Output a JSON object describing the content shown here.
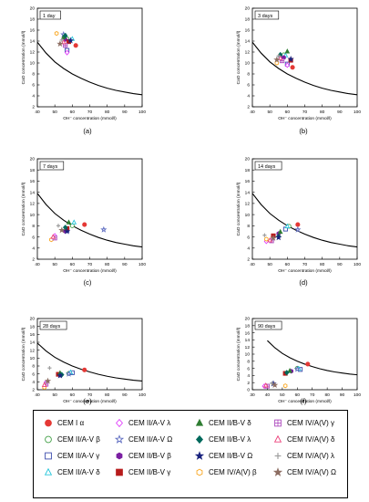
{
  "figure": {
    "panel_labels": [
      "(a)",
      "(b)",
      "(c)",
      "(d)",
      "(e)",
      "(f)"
    ]
  },
  "legend": {
    "entries": [
      {
        "label": "CEM I α",
        "marker": "circle",
        "color": "#e53935",
        "filled": true
      },
      {
        "label": "CEM II/A-V β",
        "marker": "circle",
        "color": "#43a047",
        "filled": false
      },
      {
        "label": "CEM II/A-V γ",
        "marker": "square",
        "color": "#3949ab",
        "filled": false
      },
      {
        "label": "CEM II/A-V δ",
        "marker": "triangle",
        "color": "#26c6da",
        "filled": false
      },
      {
        "label": "CEM II/A-V λ",
        "marker": "diamond",
        "color": "#e040fb",
        "filled": false
      },
      {
        "label": "CEM II/A-V Ω",
        "marker": "star",
        "color": "#5c6bc0",
        "filled": false
      },
      {
        "label": "CEM II/B-V β",
        "marker": "hexagon",
        "color": "#7b1fa2",
        "filled": true
      },
      {
        "label": "CEM II/B-V γ",
        "marker": "square",
        "color": "#b71c1c",
        "filled": true
      },
      {
        "label": "CEM II/B-V δ",
        "marker": "triangle",
        "color": "#2e7d32",
        "filled": true
      },
      {
        "label": "CEM II/B-V λ",
        "marker": "diamond",
        "color": "#00695c",
        "filled": true
      },
      {
        "label": "CEM II/B-V Ω",
        "marker": "star",
        "color": "#1a237e",
        "filled": true
      },
      {
        "label": "CEM IV/A(V) β",
        "marker": "hexagon",
        "color": "#f9a825",
        "filled": false
      },
      {
        "label": "CEM IV/A(V) γ",
        "marker": "squarecross",
        "color": "#ab47bc",
        "filled": false
      },
      {
        "label": "CEM IV/A(V) δ",
        "marker": "triangle",
        "color": "#ec407a",
        "filled": false
      },
      {
        "label": "CEM IV/A(V) λ",
        "marker": "plus",
        "color": "#9e9e9e",
        "filled": true
      },
      {
        "label": "CEM IV/A(V) Ω",
        "marker": "star",
        "color": "#8d6e63",
        "filled": true
      }
    ]
  },
  "chart_data": [
    {
      "type": "scatter",
      "panel": "(a)",
      "title": "1 day",
      "xlabel": "OH⁻ concentration (mmol/l)",
      "ylabel": "CaO concentration (mmol/l)",
      "xlim": [
        40,
        100
      ],
      "ylim": [
        2,
        20
      ],
      "xticks": [
        40,
        50,
        60,
        70,
        80,
        90,
        100
      ],
      "yticks": [
        2,
        4,
        6,
        8,
        10,
        12,
        14,
        16,
        18,
        20
      ],
      "curve": {
        "x": [
          40,
          45,
          50,
          55,
          60,
          65,
          70,
          75,
          80,
          85,
          90,
          95,
          100
        ],
        "y": [
          13.8,
          11.8,
          10.2,
          9.0,
          8.0,
          7.2,
          6.5,
          5.9,
          5.4,
          5.0,
          4.7,
          4.4,
          4.2
        ]
      },
      "points": [
        {
          "s": 0,
          "x": 62,
          "y": 13.2
        },
        {
          "s": 1,
          "x": 57,
          "y": 14.4
        },
        {
          "s": 2,
          "x": 57,
          "y": 12.3
        },
        {
          "s": 3,
          "x": 60,
          "y": 14.4
        },
        {
          "s": 4,
          "x": 57,
          "y": 11.9
        },
        {
          "s": 5,
          "x": 55,
          "y": 15.2
        },
        {
          "s": 6,
          "x": 56,
          "y": 14.3
        },
        {
          "s": 7,
          "x": 58,
          "y": 13.9
        },
        {
          "s": 8,
          "x": 55,
          "y": 14.7
        },
        {
          "s": 9,
          "x": 56,
          "y": 15.0
        },
        {
          "s": 10,
          "x": 59,
          "y": 14.1
        },
        {
          "s": 11,
          "x": 51,
          "y": 15.4
        },
        {
          "s": 12,
          "x": 56,
          "y": 13.2
        },
        {
          "s": 13,
          "x": 55,
          "y": 13.8
        },
        {
          "s": 14,
          "x": 54,
          "y": 14.2
        },
        {
          "s": 15,
          "x": 53,
          "y": 13.5
        }
      ]
    },
    {
      "type": "scatter",
      "panel": "(b)",
      "title": "3 days",
      "xlabel": "OH⁻ concentration (mmol/l)",
      "ylabel": "CaO concentration (mmol/l)",
      "xlim": [
        40,
        100
      ],
      "ylim": [
        2,
        20
      ],
      "xticks": [
        40,
        50,
        60,
        70,
        80,
        90,
        100
      ],
      "yticks": [
        2,
        4,
        6,
        8,
        10,
        12,
        14,
        16,
        18,
        20
      ],
      "curve": {
        "x": [
          40,
          45,
          50,
          55,
          60,
          65,
          70,
          75,
          80,
          85,
          90,
          95,
          100
        ],
        "y": [
          13.8,
          11.8,
          10.2,
          9.0,
          8.0,
          7.2,
          6.5,
          5.9,
          5.4,
          5.0,
          4.7,
          4.4,
          4.2
        ]
      },
      "points": [
        {
          "s": 0,
          "x": 63,
          "y": 9.2
        },
        {
          "s": 1,
          "x": 58,
          "y": 11.5
        },
        {
          "s": 2,
          "x": 60,
          "y": 9.8
        },
        {
          "s": 3,
          "x": 59,
          "y": 11.4
        },
        {
          "s": 4,
          "x": 60,
          "y": 9.6
        },
        {
          "s": 5,
          "x": 56,
          "y": 11.0
        },
        {
          "s": 6,
          "x": 58,
          "y": 11.0
        },
        {
          "s": 7,
          "x": 62,
          "y": 10.5
        },
        {
          "s": 8,
          "x": 60,
          "y": 12.1
        },
        {
          "s": 9,
          "x": 56,
          "y": 11.5
        },
        {
          "s": 10,
          "x": 62,
          "y": 10.7
        },
        {
          "s": 11,
          "x": 54,
          "y": 10.0
        },
        {
          "s": 12,
          "x": 57,
          "y": 10.4
        },
        {
          "s": 13,
          "x": 56,
          "y": 10.9
        },
        {
          "s": 14,
          "x": 55,
          "y": 11.3
        },
        {
          "s": 15,
          "x": 54,
          "y": 10.6
        }
      ]
    },
    {
      "type": "scatter",
      "panel": "(c)",
      "title": "7 days",
      "xlabel": "OH⁻ concentration (mmol/l)",
      "ylabel": "CaO concentration (mmol/l)",
      "xlim": [
        40,
        100
      ],
      "ylim": [
        2,
        20
      ],
      "xticks": [
        40,
        50,
        60,
        70,
        80,
        90,
        100
      ],
      "yticks": [
        2,
        4,
        6,
        8,
        10,
        12,
        14,
        16,
        18,
        20
      ],
      "curve": {
        "x": [
          40,
          45,
          50,
          55,
          60,
          65,
          70,
          75,
          80,
          85,
          90,
          95,
          100
        ],
        "y": [
          13.8,
          11.8,
          10.2,
          9.0,
          8.0,
          7.2,
          6.5,
          5.9,
          5.4,
          5.0,
          4.7,
          4.4,
          4.2
        ]
      },
      "points": [
        {
          "s": 0,
          "x": 67,
          "y": 8.2
        },
        {
          "s": 1,
          "x": 60,
          "y": 8.0
        },
        {
          "s": 2,
          "x": 57,
          "y": 7.2
        },
        {
          "s": 3,
          "x": 61,
          "y": 8.6
        },
        {
          "s": 4,
          "x": 50,
          "y": 6.2
        },
        {
          "s": 5,
          "x": 78,
          "y": 7.3
        },
        {
          "s": 6,
          "x": 56,
          "y": 7.0
        },
        {
          "s": 7,
          "x": 57,
          "y": 7.5
        },
        {
          "s": 8,
          "x": 58,
          "y": 8.6
        },
        {
          "s": 9,
          "x": 56,
          "y": 7.7
        },
        {
          "s": 10,
          "x": 57,
          "y": 7.0
        },
        {
          "s": 11,
          "x": 48,
          "y": 5.5
        },
        {
          "s": 12,
          "x": 50,
          "y": 5.8
        },
        {
          "s": 13,
          "x": 49,
          "y": 6.0
        },
        {
          "s": 14,
          "x": 52,
          "y": 8.0
        },
        {
          "s": 15,
          "x": 54,
          "y": 7.2
        }
      ]
    },
    {
      "type": "scatter",
      "panel": "(d)",
      "title": "14 days",
      "xlabel": "OH⁻ concentration (mmol/l)",
      "ylabel": "CaO concentration (mmol/l)",
      "xlim": [
        40,
        100
      ],
      "ylim": [
        2,
        20
      ],
      "xticks": [
        40,
        50,
        60,
        70,
        80,
        90,
        100
      ],
      "yticks": [
        2,
        4,
        6,
        8,
        10,
        12,
        14,
        16,
        18,
        20
      ],
      "curve": {
        "x": [
          40,
          45,
          50,
          55,
          60,
          65,
          70,
          75,
          80,
          85,
          90,
          95,
          100
        ],
        "y": [
          13.8,
          11.8,
          10.2,
          9.0,
          8.0,
          7.2,
          6.5,
          5.9,
          5.4,
          5.0,
          4.7,
          4.4,
          4.2
        ]
      },
      "points": [
        {
          "s": 0,
          "x": 66,
          "y": 8.2
        },
        {
          "s": 1,
          "x": 61,
          "y": 7.9
        },
        {
          "s": 2,
          "x": 59,
          "y": 7.4
        },
        {
          "s": 3,
          "x": 60,
          "y": 7.9
        },
        {
          "s": 4,
          "x": 48,
          "y": 5.2
        },
        {
          "s": 5,
          "x": 66,
          "y": 7.3
        },
        {
          "s": 6,
          "x": 55,
          "y": 6.6
        },
        {
          "s": 7,
          "x": 52,
          "y": 6.2
        },
        {
          "s": 8,
          "x": 56,
          "y": 6.9
        },
        {
          "s": 9,
          "x": 55,
          "y": 6.1
        },
        {
          "s": 10,
          "x": 55,
          "y": 5.9
        },
        {
          "s": 11,
          "x": 48,
          "y": 5.6
        },
        {
          "s": 12,
          "x": 51,
          "y": 5.3
        },
        {
          "s": 13,
          "x": 50,
          "y": 5.4
        },
        {
          "s": 14,
          "x": 47,
          "y": 6.3
        },
        {
          "s": 15,
          "x": 52,
          "y": 5.8
        }
      ]
    },
    {
      "type": "scatter",
      "panel": "(e)",
      "title": "28 days",
      "xlabel": "OH⁻ concentration (mmol/l)",
      "ylabel": "CaO concentration (mmol/l)",
      "xlim": [
        40,
        100
      ],
      "ylim": [
        2,
        20
      ],
      "xticks": [
        40,
        50,
        60,
        70,
        80,
        90,
        100
      ],
      "yticks": [
        2,
        4,
        6,
        8,
        10,
        12,
        14,
        16,
        18,
        20
      ],
      "curve": {
        "x": [
          40,
          45,
          50,
          55,
          60,
          65,
          70,
          75,
          80,
          85,
          90,
          95,
          100
        ],
        "y": [
          13.8,
          11.8,
          10.2,
          9.0,
          8.0,
          7.2,
          6.5,
          5.9,
          5.4,
          5.0,
          4.7,
          4.4,
          4.2
        ]
      },
      "points": [
        {
          "s": 0,
          "x": 67,
          "y": 7.0
        },
        {
          "s": 1,
          "x": 58,
          "y": 6.1
        },
        {
          "s": 2,
          "x": 60,
          "y": 6.3
        },
        {
          "s": 3,
          "x": 59,
          "y": 6.4
        },
        {
          "s": 4,
          "x": 45,
          "y": 3.8
        },
        {
          "s": 5,
          "x": 58,
          "y": 6.0
        },
        {
          "s": 6,
          "x": 53,
          "y": 5.7
        },
        {
          "s": 7,
          "x": 52,
          "y": 5.9
        },
        {
          "s": 8,
          "x": 53,
          "y": 6.2
        },
        {
          "s": 9,
          "x": 54,
          "y": 5.8
        },
        {
          "s": 10,
          "x": 53,
          "y": 5.6
        },
        {
          "s": 11,
          "x": 44,
          "y": 2.6
        },
        {
          "s": 12,
          "x": 45,
          "y": 3.4
        },
        {
          "s": 13,
          "x": 44,
          "y": 3.2
        },
        {
          "s": 14,
          "x": 47,
          "y": 7.5
        },
        {
          "s": 15,
          "x": 46,
          "y": 4.2
        }
      ]
    },
    {
      "type": "scatter",
      "panel": "(f)",
      "title": "90 days",
      "xlabel": "OH⁻ concentration (mmol/l)",
      "ylabel": "CaO concentration (mmol/l)",
      "xlim": [
        30,
        100
      ],
      "ylim": [
        0,
        20
      ],
      "xticks": [
        30,
        40,
        50,
        60,
        70,
        80,
        90,
        100
      ],
      "yticks": [
        0,
        2,
        4,
        6,
        8,
        10,
        12,
        14,
        16,
        18,
        20
      ],
      "curve": {
        "x": [
          40,
          45,
          50,
          55,
          60,
          65,
          70,
          75,
          80,
          85,
          90,
          95,
          100
        ],
        "y": [
          13.8,
          11.8,
          10.2,
          9.0,
          8.0,
          7.2,
          6.5,
          5.9,
          5.4,
          5.0,
          4.7,
          4.4,
          4.2
        ]
      },
      "points": [
        {
          "s": 0,
          "x": 67,
          "y": 7.2
        },
        {
          "s": 1,
          "x": 60,
          "y": 6.0
        },
        {
          "s": 2,
          "x": 62,
          "y": 5.7
        },
        {
          "s": 3,
          "x": 61,
          "y": 5.9
        },
        {
          "s": 4,
          "x": 38,
          "y": 1.0
        },
        {
          "s": 5,
          "x": 60,
          "y": 5.8
        },
        {
          "s": 6,
          "x": 56,
          "y": 5.2
        },
        {
          "s": 7,
          "x": 52,
          "y": 4.6
        },
        {
          "s": 8,
          "x": 55,
          "y": 5.3
        },
        {
          "s": 9,
          "x": 53,
          "y": 4.8
        },
        {
          "s": 10,
          "x": 44,
          "y": 1.7
        },
        {
          "s": 11,
          "x": 52,
          "y": 1.1
        },
        {
          "s": 12,
          "x": 40,
          "y": 1.0
        },
        {
          "s": 13,
          "x": 39,
          "y": 1.2
        },
        {
          "s": 14,
          "x": 43,
          "y": 1.8
        },
        {
          "s": 15,
          "x": 45,
          "y": 1.3
        }
      ]
    }
  ]
}
